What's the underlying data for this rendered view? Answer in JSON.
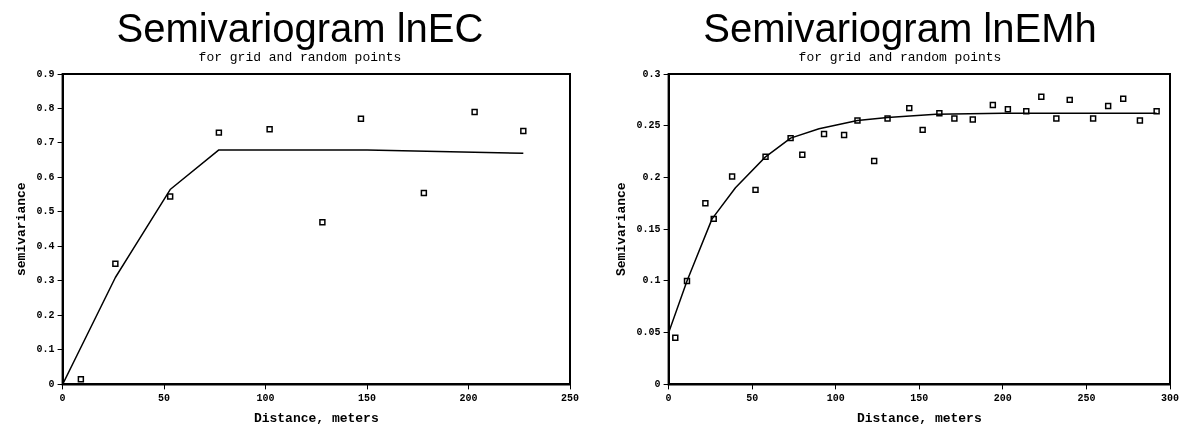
{
  "chart_data": [
    {
      "type": "scatter",
      "title": "Semivariogram lnEC",
      "subtitle": "for grid and random points",
      "xlabel": "Distance, meters",
      "ylabel": "semivariance",
      "xlim": [
        0,
        250
      ],
      "xticks": [
        0,
        50,
        100,
        150,
        200,
        250
      ],
      "ylim": [
        0,
        0.9
      ],
      "yticks": [
        0,
        0.1,
        0.2,
        0.3,
        0.4,
        0.5,
        0.6,
        0.7,
        0.8,
        0.9
      ],
      "grid": false,
      "legend": false,
      "series": [
        {
          "color": "#000000",
          "marker": "square",
          "x": [
            9,
            26,
            53,
            77,
            102,
            128,
            147,
            178,
            203,
            227
          ],
          "values": [
            0.015,
            0.35,
            0.545,
            0.73,
            0.74,
            0.47,
            0.77,
            0.555,
            0.79,
            0.735
          ]
        },
        {
          "type": "line",
          "color": "#000000",
          "marker": "none",
          "line_style": "solid",
          "x": [
            0,
            26,
            53,
            77,
            150,
            227
          ],
          "values": [
            0,
            0.31,
            0.565,
            0.68,
            0.68,
            0.67
          ]
        }
      ]
    },
    {
      "type": "scatter",
      "title": "Semivariogram lnEMh",
      "subtitle": "for grid and random points",
      "xlabel": "Distance, meters",
      "ylabel": "Semivariance",
      "xlim": [
        0,
        300
      ],
      "xticks": [
        0,
        50,
        100,
        150,
        200,
        250,
        300
      ],
      "ylim": [
        0,
        0.3
      ],
      "yticks": [
        0,
        0.05,
        0.1,
        0.15,
        0.2,
        0.25,
        0.3
      ],
      "grid": false,
      "legend": false,
      "series": [
        {
          "color": "#000000",
          "marker": "square",
          "x": [
            4,
            11,
            22,
            27,
            38,
            52,
            58,
            73,
            80,
            93,
            105,
            113,
            123,
            131,
            144,
            152,
            162,
            171,
            182,
            194,
            203,
            214,
            223,
            232,
            240,
            254,
            263,
            272,
            282,
            292
          ],
          "values": [
            0.045,
            0.1,
            0.175,
            0.16,
            0.201,
            0.188,
            0.22,
            0.238,
            0.222,
            0.242,
            0.241,
            0.255,
            0.216,
            0.257,
            0.267,
            0.246,
            0.262,
            0.257,
            0.256,
            0.27,
            0.266,
            0.264,
            0.278,
            0.257,
            0.275,
            0.257,
            0.269,
            0.276,
            0.255,
            0.264
          ]
        },
        {
          "type": "line",
          "color": "#000000",
          "marker": "none",
          "line_style": "solid",
          "x": [
            0,
            11,
            26,
            40,
            58,
            73,
            90,
            113,
            131,
            160,
            200,
            250,
            292
          ],
          "values": [
            0.05,
            0.1,
            0.16,
            0.19,
            0.22,
            0.238,
            0.247,
            0.255,
            0.258,
            0.261,
            0.262,
            0.262,
            0.262
          ]
        }
      ]
    }
  ]
}
